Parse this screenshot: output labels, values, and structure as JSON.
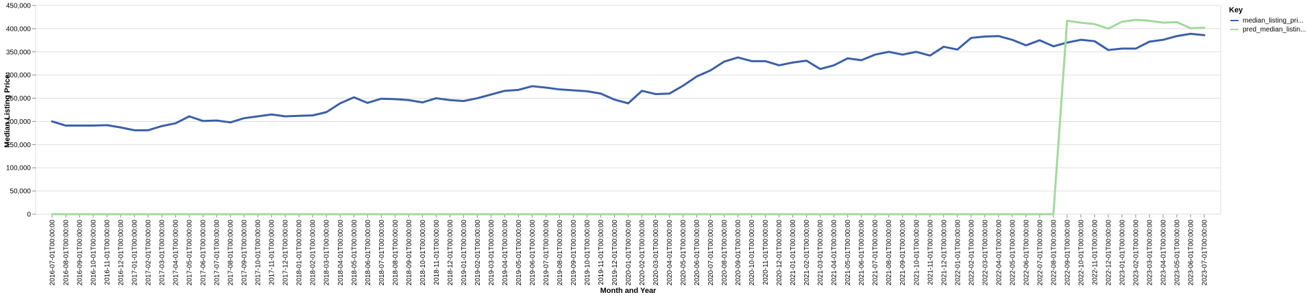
{
  "chart_data": {
    "type": "line",
    "xlabel": "Month and Year",
    "ylabel": "Median Listing Price:",
    "ylim": [
      0,
      450000
    ],
    "y_ticks": [
      "0",
      "50,000",
      "100,000",
      "150,000",
      "200,000",
      "250,000",
      "300,000",
      "350,000",
      "400,000",
      "450,000"
    ],
    "y_tick_values": [
      0,
      50000,
      100000,
      150000,
      200000,
      250000,
      300000,
      350000,
      400000,
      450000
    ],
    "grid": true,
    "legend": {
      "title": "Key",
      "placement": "right"
    },
    "x": [
      "2016-07-01T00:00:00",
      "2016-08-01T00:00:00",
      "2016-09-01T00:00:00",
      "2016-10-01T00:00:00",
      "2016-11-01T00:00:00",
      "2016-12-01T00:00:00",
      "2017-01-01T00:00:00",
      "2017-02-01T00:00:00",
      "2017-03-01T00:00:00",
      "2017-04-01T00:00:00",
      "2017-05-01T00:00:00",
      "2017-06-01T00:00:00",
      "2017-07-01T00:00:00",
      "2017-08-01T00:00:00",
      "2017-09-01T00:00:00",
      "2017-10-01T00:00:00",
      "2017-11-01T00:00:00",
      "2017-12-01T00:00:00",
      "2018-01-01T00:00:00",
      "2018-02-01T00:00:00",
      "2018-03-01T00:00:00",
      "2018-04-01T00:00:00",
      "2018-05-01T00:00:00",
      "2018-06-01T00:00:00",
      "2018-07-01T00:00:00",
      "2018-08-01T00:00:00",
      "2018-09-01T00:00:00",
      "2018-10-01T00:00:00",
      "2018-11-01T00:00:00",
      "2018-12-01T00:00:00",
      "2019-01-01T00:00:00",
      "2019-02-01T00:00:00",
      "2019-03-01T00:00:00",
      "2019-04-01T00:00:00",
      "2019-05-01T00:00:00",
      "2019-06-01T00:00:00",
      "2019-07-01T00:00:00",
      "2019-08-01T00:00:00",
      "2019-09-01T00:00:00",
      "2019-10-01T00:00:00",
      "2019-11-01T00:00:00",
      "2019-12-01T00:00:00",
      "2020-01-01T00:00:00",
      "2020-02-01T00:00:00",
      "2020-03-01T00:00:00",
      "2020-04-01T00:00:00",
      "2020-05-01T00:00:00",
      "2020-06-01T00:00:00",
      "2020-07-01T00:00:00",
      "2020-08-01T00:00:00",
      "2020-09-01T00:00:00",
      "2020-10-01T00:00:00",
      "2020-11-01T00:00:00",
      "2020-12-01T00:00:00",
      "2021-01-01T00:00:00",
      "2021-02-01T00:00:00",
      "2021-03-01T00:00:00",
      "2021-04-01T00:00:00",
      "2021-05-01T00:00:00",
      "2021-06-01T00:00:00",
      "2021-07-01T00:00:00",
      "2021-08-01T00:00:00",
      "2021-09-01T00:00:00",
      "2021-10-01T00:00:00",
      "2021-11-01T00:00:00",
      "2021-12-01T00:00:00",
      "2022-01-01T00:00:00",
      "2022-02-01T00:00:00",
      "2022-03-01T00:00:00",
      "2022-04-01T00:00:00",
      "2022-05-01T00:00:00",
      "2022-06-01T00:00:00",
      "2022-07-01T00:00:00",
      "2022-08-01T00:00:00",
      "2022-09-01T00:00:00",
      "2022-10-01T00:00:00",
      "2022-11-01T00:00:00",
      "2022-12-01T00:00:00",
      "2023-01-01T00:00:00",
      "2023-02-01T00:00:00",
      "2023-03-01T00:00:00",
      "2023-04-01T00:00:00",
      "2023-05-01T00:00:00",
      "2023-06-01T00:00:00",
      "2023-07-01T00:00:00"
    ],
    "series": [
      {
        "name": "median_listing_pri...",
        "color": "#3b5fa8",
        "values": [
          200000,
          191000,
          191000,
          191000,
          192000,
          187000,
          181000,
          181000,
          190000,
          196000,
          211000,
          201000,
          202000,
          198000,
          207000,
          211000,
          215000,
          211000,
          212000,
          213000,
          220000,
          239000,
          252000,
          240000,
          249000,
          248000,
          246000,
          241000,
          250000,
          246000,
          244000,
          250000,
          258000,
          266000,
          268000,
          276000,
          273000,
          269000,
          267000,
          265000,
          260000,
          247000,
          239000,
          266000,
          259000,
          260000,
          277000,
          297000,
          310000,
          329000,
          338000,
          330000,
          330000,
          321000,
          327000,
          331000,
          313000,
          321000,
          336000,
          332000,
          344000,
          350000,
          344000,
          350000,
          342000,
          361000,
          355000,
          380000,
          383000,
          384000,
          376000,
          364000,
          375000,
          362000,
          370000,
          376000,
          373000,
          354000,
          357000,
          357000,
          372000,
          376000,
          384000,
          389000,
          386000
        ]
      },
      {
        "name": "pred_median_listin...",
        "color": "#a1d99b",
        "values": [
          0,
          0,
          0,
          0,
          0,
          0,
          0,
          0,
          0,
          0,
          0,
          0,
          0,
          0,
          0,
          0,
          0,
          0,
          0,
          0,
          0,
          0,
          0,
          0,
          0,
          0,
          0,
          0,
          0,
          0,
          0,
          0,
          0,
          0,
          0,
          0,
          0,
          0,
          0,
          0,
          0,
          0,
          0,
          0,
          0,
          0,
          0,
          0,
          0,
          0,
          0,
          0,
          0,
          0,
          0,
          0,
          0,
          0,
          0,
          0,
          0,
          0,
          0,
          0,
          0,
          0,
          0,
          0,
          0,
          0,
          0,
          0,
          0,
          0,
          417000,
          413000,
          410000,
          400000,
          415000,
          419000,
          417000,
          413000,
          414000,
          401000,
          402000
        ]
      }
    ]
  }
}
